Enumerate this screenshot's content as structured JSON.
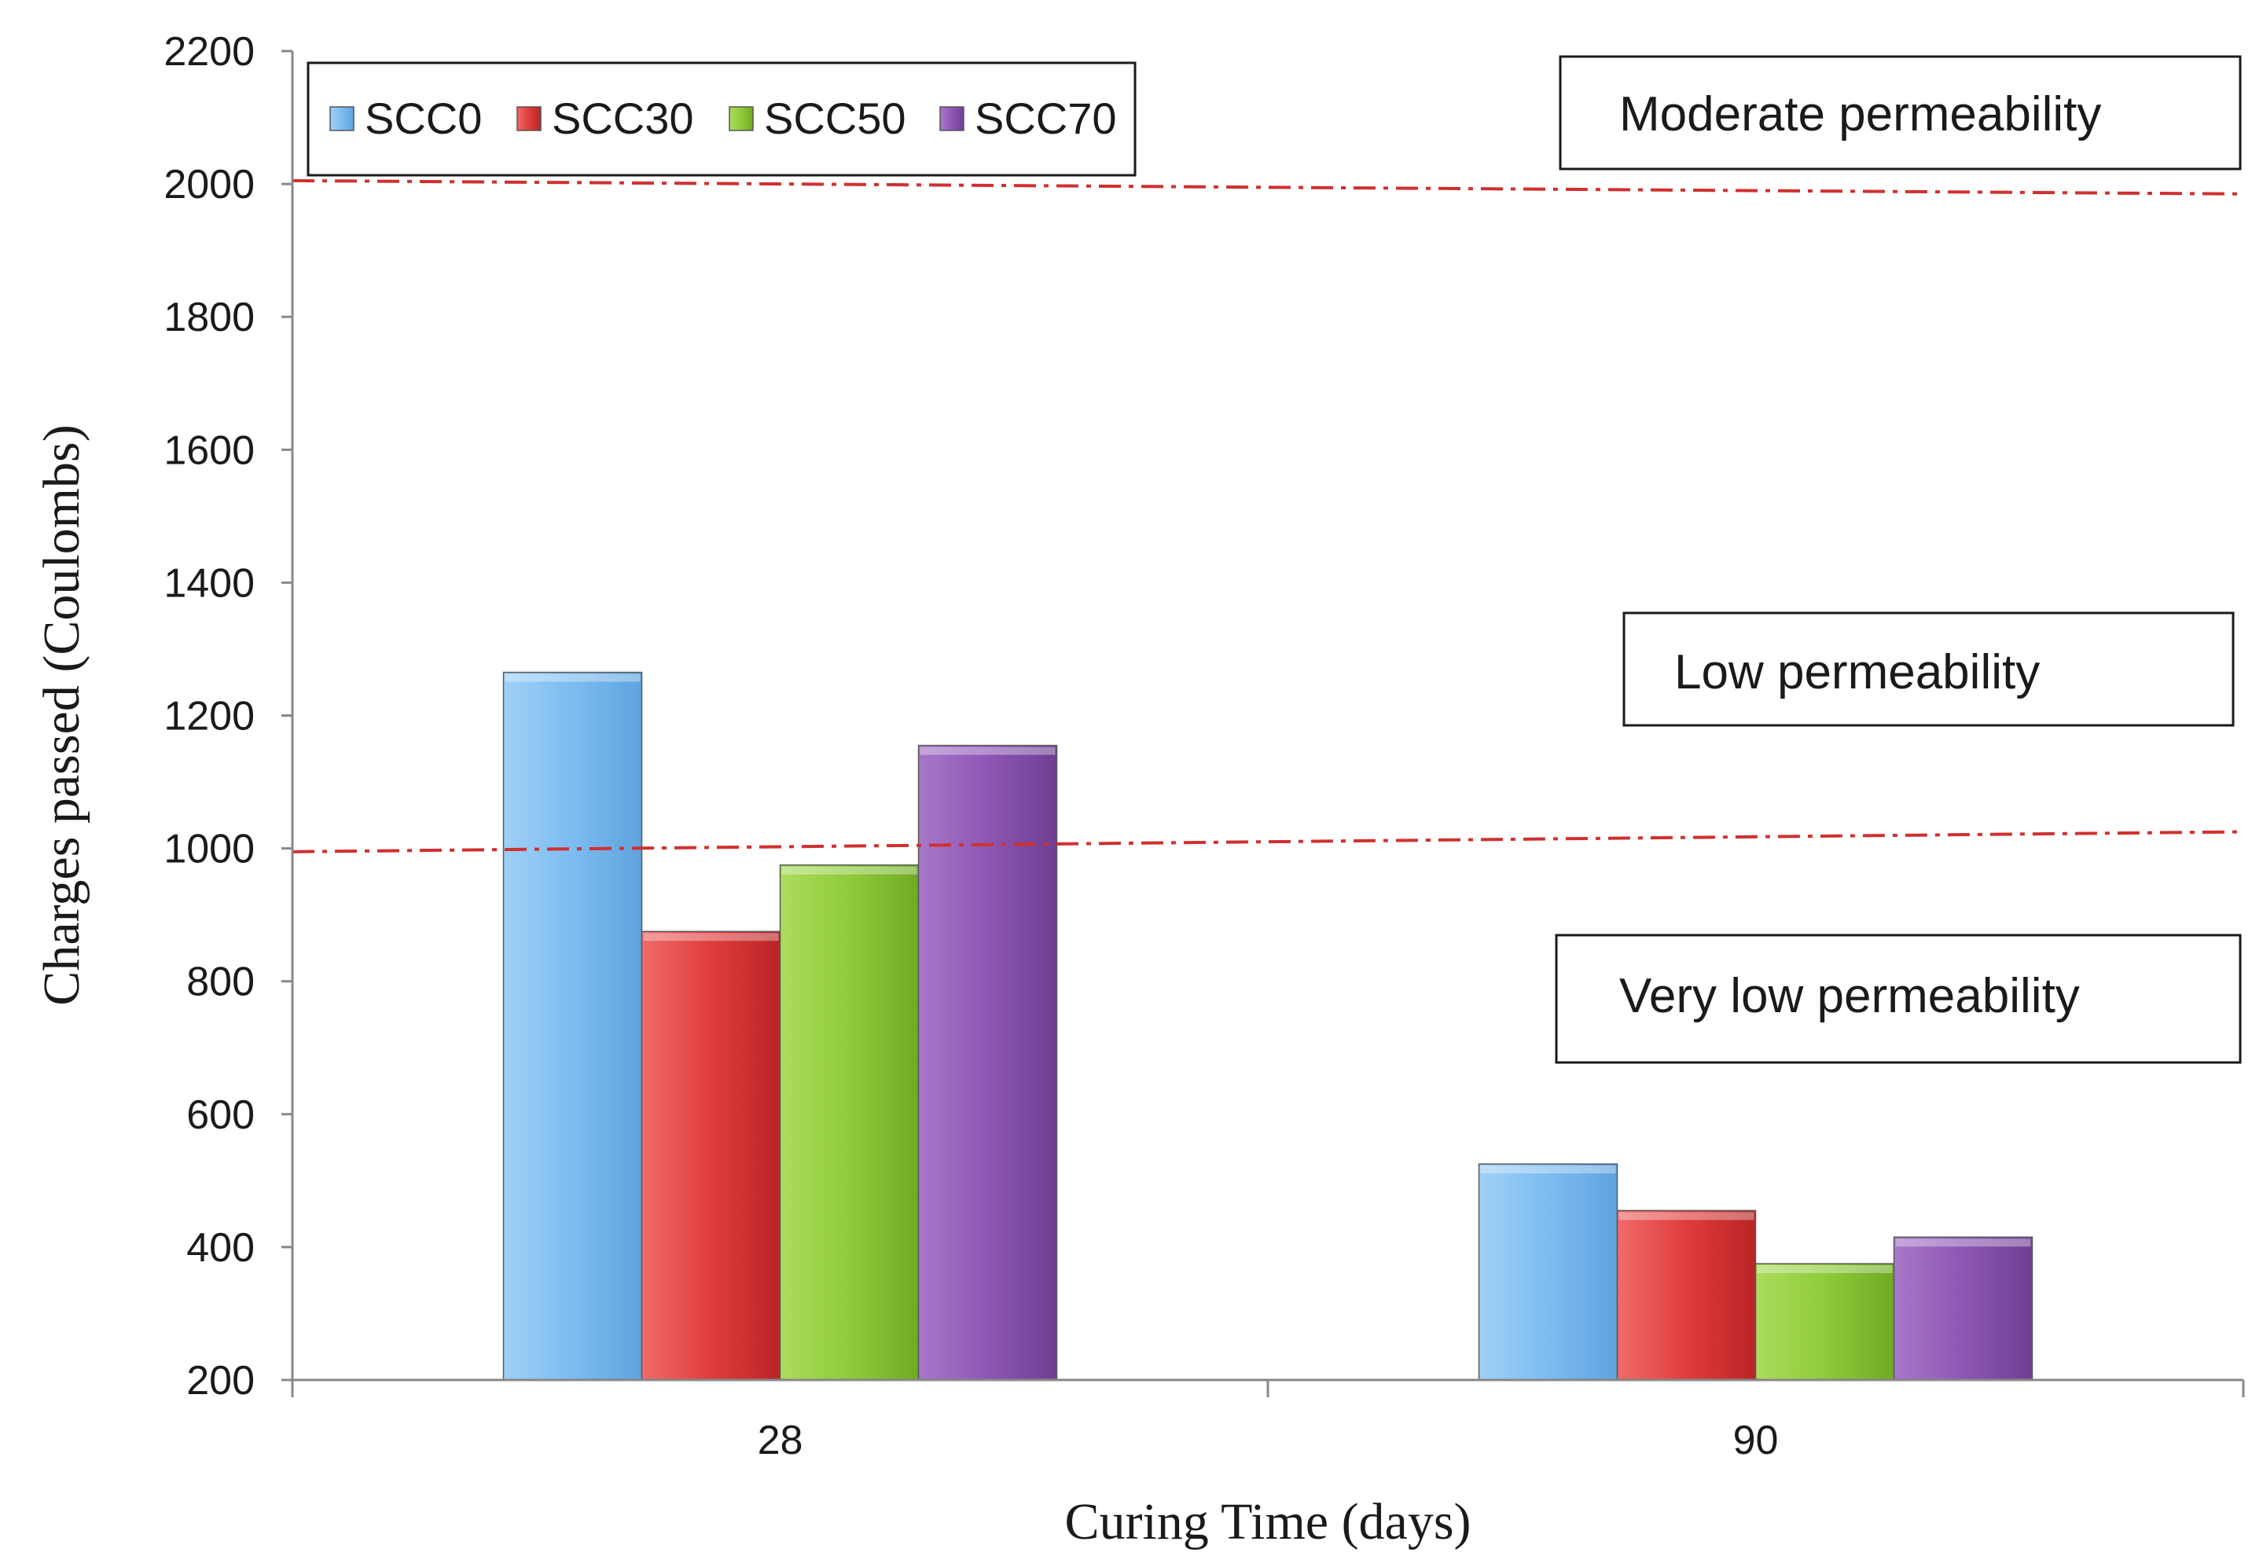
{
  "chart_data": {
    "type": "bar",
    "title": "",
    "xlabel": "Curing Time (days)",
    "ylabel": "Charges passed (Coulombs)",
    "ylim": [
      200,
      2200
    ],
    "yticks": [
      "200",
      "400",
      "600",
      "800",
      "1000",
      "1200",
      "1400",
      "1600",
      "1800",
      "2000",
      "2200"
    ],
    "categories": [
      "28",
      "90"
    ],
    "series": [
      {
        "name": "SCC0",
        "color": "#7cbcf0",
        "values": [
          1265,
          525
        ]
      },
      {
        "name": "SCC30",
        "color": "#e03c3c",
        "values": [
          875,
          455
        ]
      },
      {
        "name": "SCC50",
        "color": "#8ecb3a",
        "values": [
          975,
          375
        ]
      },
      {
        "name": "SCC70",
        "color": "#8e56b4",
        "values": [
          1155,
          415
        ]
      }
    ],
    "legend_position": "top-left",
    "reference_lines": [
      {
        "label": "Moderate/Low boundary",
        "y_start": 2005,
        "y_end": 1985,
        "color": "#d03030",
        "style": "dash-dot"
      },
      {
        "label": "Low/Very low boundary",
        "y_start": 995,
        "y_end": 1025,
        "color": "#d03030",
        "style": "dash-dot"
      }
    ],
    "annotations": [
      {
        "text": "Moderate permeability"
      },
      {
        "text": "Low permeability"
      },
      {
        "text": "Very low permeability"
      }
    ]
  }
}
